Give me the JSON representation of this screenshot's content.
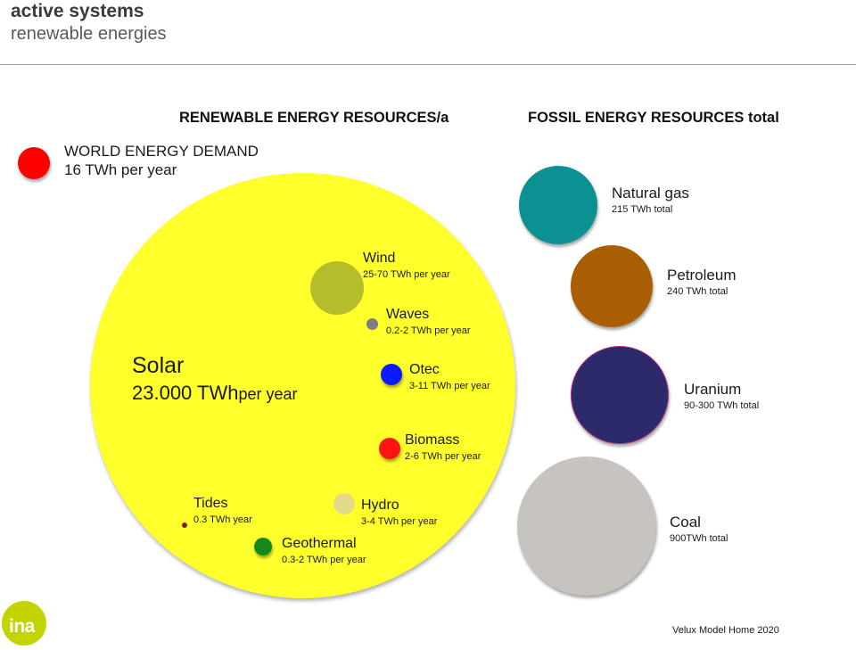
{
  "header": {
    "title": "active systems",
    "subtitle": "renewable energies"
  },
  "renewable": {
    "heading": "RENEWABLE ENERGY RESOURCES/a",
    "demand": {
      "name": "WORLD ENERGY DEMAND",
      "value": "16 TWh per year",
      "color": "#ff0000"
    },
    "solar": {
      "name": "Solar",
      "value_main": "23.000 TWh",
      "value_unit": "per year",
      "color": "#ffff2b"
    },
    "items": {
      "wind": {
        "name": "Wind",
        "value": "25-70 TWh per year",
        "color": "#b5be2a"
      },
      "waves": {
        "name": "Waves",
        "value": "0.2-2 TWh per year",
        "color": "#7f7f7f"
      },
      "otec": {
        "name": "Otec",
        "value": "3-11 TWh per year",
        "color": "#0b1bff"
      },
      "biomass": {
        "name": "Biomass",
        "value": "2-6 TWh per year",
        "color": "#ff1414"
      },
      "hydro": {
        "name": "Hydro",
        "value": "3-4 TWh per year",
        "color": "#e5d98a"
      },
      "tides": {
        "name": "Tides",
        "value": "0.3 TWh year",
        "color": "#7a1f2b"
      },
      "geothermal": {
        "name": "Geothermal",
        "value": "0.3-2 TWh per year",
        "color": "#148a1e"
      }
    }
  },
  "fossil": {
    "heading": "FOSSIL ENERGY RESOURCES total",
    "items": {
      "natural_gas": {
        "name": "Natural gas",
        "value": "215 TWh total",
        "color": "#0b9191"
      },
      "petroleum": {
        "name": "Petroleum",
        "value": "240 TWh total",
        "color": "#a95e03"
      },
      "uranium": {
        "name": "Uranium",
        "value": "90-300 TWh total",
        "color": "#2c2a6b"
      },
      "coal": {
        "name": "Coal",
        "value": "900TWh total",
        "color": "#c7c3bf"
      }
    }
  },
  "footer": {
    "credit": "Velux Model Home 2020",
    "logo": "ina"
  }
}
